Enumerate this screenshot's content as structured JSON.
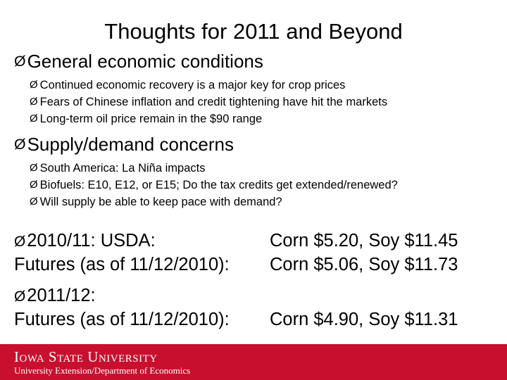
{
  "title": "Thoughts for 2011 and Beyond",
  "arrow_glyph": "Ø",
  "sections": [
    {
      "heading": "General economic conditions",
      "items": [
        "Continued economic recovery is a major key for crop prices",
        "Fears of Chinese inflation and credit tightening have hit the markets",
        "Long-term oil price remain in the $90 range"
      ]
    },
    {
      "heading": "Supply/demand concerns",
      "items": [
        "South America: La Niña impacts",
        "Biofuels:  E10, E12, or E15; Do the tax credits get extended/renewed?",
        "Will supply be able to keep pace with demand?"
      ]
    }
  ],
  "prices": [
    {
      "rows": [
        {
          "label": "2010/11:  USDA:",
          "value": "Corn $5.20, Soy $11.45",
          "arrow": true
        },
        {
          "label": "Futures (as of 11/12/2010):",
          "value": "Corn $5.06, Soy $11.73",
          "arrow": false
        }
      ]
    },
    {
      "rows": [
        {
          "label": "2011/12:",
          "value": "",
          "arrow": true
        },
        {
          "label": "Futures (as of 11/12/2010):",
          "value": "Corn $4.90, Soy $11.31",
          "arrow": false
        }
      ]
    }
  ],
  "footer": {
    "brand": "Iowa State University",
    "department": "University Extension/Department of Economics",
    "color": "#c8102e"
  }
}
